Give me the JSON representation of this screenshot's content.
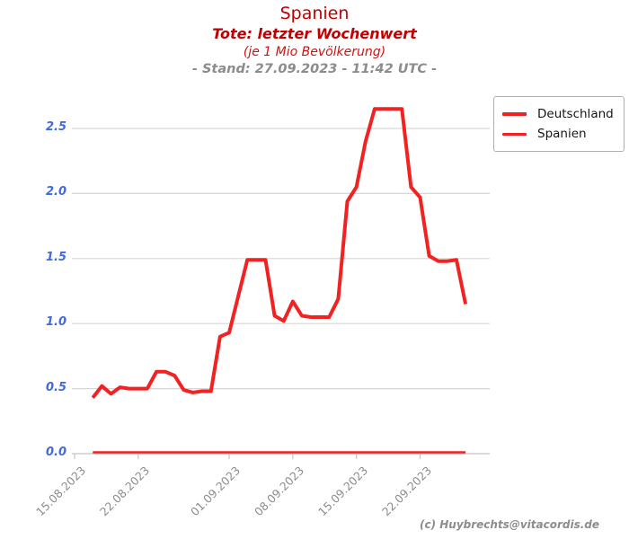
{
  "header": {
    "title": "Spanien",
    "subtitle": "Tote: letzter Wochenwert",
    "unit_note": "(je 1 Mio Bevölkerung)",
    "stand": "- Stand: 27.09.2023 - 11:42 UTC -"
  },
  "legend": {
    "items": [
      {
        "label": "Deutschland"
      },
      {
        "label": "Spanien"
      }
    ]
  },
  "footer": {
    "credit": "(c) Huybrechts@vitacordis.de"
  },
  "colors": {
    "line_red": "#f22222",
    "title_red": "#c00000",
    "ytick_blue": "#4169e1",
    "xtick_gray": "#8c8c8c",
    "grid_gray": "#d6d6d6",
    "axis_gray": "#c4c4c4",
    "legend_border": "#b0b0b0",
    "credit_gray": "#8c8c8c"
  },
  "chart_data": {
    "type": "line",
    "title": "Spanien",
    "subtitle": "Tote: letzter Wochenwert (je 1 Mio Bevölkerung)",
    "grid": "horizontal",
    "legend_position": "upper-right-outside",
    "ylim": [
      0,
      2.75
    ],
    "y_ticks": [
      0.0,
      0.5,
      1.0,
      1.5,
      2.0,
      2.5
    ],
    "y_tick_labels": [
      "0.0",
      "0.5",
      "1.0",
      "1.5",
      "2.0",
      "2.5"
    ],
    "x_tick_labels": [
      "15.08.2023",
      "22.08.2023",
      "01.09.2023",
      "08.09.2023",
      "15.09.2023",
      "22.09.2023"
    ],
    "dates": [
      "17.08.2023",
      "18.08.2023",
      "19.08.2023",
      "20.08.2023",
      "21.08.2023",
      "22.08.2023",
      "23.08.2023",
      "24.08.2023",
      "25.08.2023",
      "26.08.2023",
      "27.08.2023",
      "28.08.2023",
      "29.08.2023",
      "30.08.2023",
      "31.08.2023",
      "01.09.2023",
      "02.09.2023",
      "03.09.2023",
      "04.09.2023",
      "05.09.2023",
      "06.09.2023",
      "07.09.2023",
      "08.09.2023",
      "09.09.2023",
      "10.09.2023",
      "11.09.2023",
      "12.09.2023",
      "13.09.2023",
      "14.09.2023",
      "15.09.2023",
      "16.09.2023",
      "17.09.2023",
      "18.09.2023",
      "19.09.2023",
      "20.09.2023",
      "21.09.2023",
      "22.09.2023",
      "23.09.2023",
      "24.09.2023",
      "25.09.2023",
      "26.09.2023",
      "27.09.2023"
    ],
    "series": [
      {
        "name": "Deutschland",
        "color": "#f22222",
        "linewidth": 4,
        "values": [
          0.43,
          0.52,
          0.46,
          0.51,
          0.5,
          0.5,
          0.5,
          0.63,
          0.63,
          0.6,
          0.49,
          0.47,
          0.48,
          0.48,
          0.9,
          0.93,
          1.21,
          1.49,
          1.49,
          1.49,
          1.06,
          1.02,
          1.17,
          1.06,
          1.05,
          1.05,
          1.05,
          1.19,
          1.94,
          2.05,
          2.4,
          2.65,
          2.65,
          2.65,
          2.65,
          2.05,
          1.97,
          1.52,
          1.48,
          1.48,
          1.49,
          1.15
        ]
      },
      {
        "name": "Spanien",
        "color": "#f22222",
        "linewidth": 2.5,
        "values": [
          0.0,
          0.0,
          0.0,
          0.0,
          0.0,
          0.0,
          0.0,
          0.0,
          0.0,
          0.0,
          0.0,
          0.0,
          0.0,
          0.0,
          0.0,
          0.0,
          0.0,
          0.0,
          0.0,
          0.0,
          0.0,
          0.0,
          0.0,
          0.0,
          0.0,
          0.0,
          0.0,
          0.0,
          0.0,
          0.0,
          0.0,
          0.0,
          0.0,
          0.0,
          0.0,
          0.0,
          0.0,
          0.0,
          0.0,
          0.0,
          0.0,
          0.0
        ]
      }
    ]
  }
}
